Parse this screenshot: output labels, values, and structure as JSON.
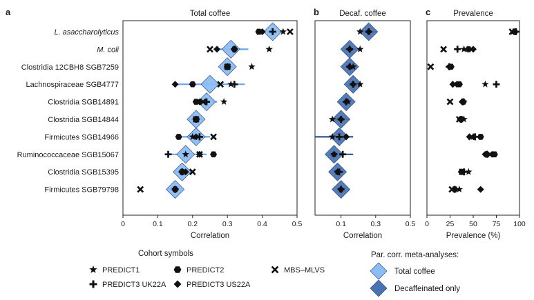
{
  "chart_data": {
    "type": "forest",
    "panels": [
      {
        "label": "a",
        "title": "Total coffee",
        "xlabel": "Correlation",
        "xlim": [
          0,
          0.5
        ],
        "xticks": [
          0,
          0.1,
          0.2,
          0.3,
          0.4,
          0.5
        ],
        "xticklabels": [
          "0",
          "0.1",
          "0.2",
          "0.3",
          "0.4",
          "0.5"
        ],
        "meta_color": "#8bbcf3",
        "rows": [
          {
            "meta": 0.43,
            "ci": [
              0.4,
              0.46
            ],
            "cohorts": {
              "PREDICT1": 0.46,
              "PREDICT2": 0.39,
              "PREDICT3 UK22A": 0.43,
              "PREDICT3 US22A": 0.4,
              "MBS-MLVS": 0.48
            }
          },
          {
            "meta": 0.31,
            "ci": [
              0.26,
              0.36
            ],
            "cohorts": {
              "PREDICT1": 0.42,
              "PREDICT2": 0.32,
              "PREDICT3 UK22A": 0.32,
              "PREDICT3 US22A": 0.27,
              "MBS-MLVS": 0.25
            }
          },
          {
            "meta": 0.3,
            "ci": [
              0.28,
              0.32
            ],
            "cohorts": {
              "PREDICT1": 0.37,
              "PREDICT2": 0.3,
              "PREDICT3 UK22A": 0.3,
              "PREDICT3 US22A": 0.3,
              "MBS-MLVS": 0.3
            }
          },
          {
            "meta": 0.25,
            "ci": [
              0.15,
              0.35
            ],
            "cohorts": {
              "PREDICT1": 0.31,
              "PREDICT2": 0.2,
              "PREDICT3 UK22A": 0.32,
              "PREDICT3 US22A": 0.15,
              "MBS-MLVS": 0.28
            }
          },
          {
            "meta": 0.24,
            "ci": [
              0.21,
              0.27
            ],
            "cohorts": {
              "PREDICT1": 0.29,
              "PREDICT2": 0.21,
              "PREDICT3 UK22A": 0.24,
              "PREDICT3 US22A": 0.22,
              "MBS-MLVS": 0.23
            }
          },
          {
            "meta": 0.21,
            "ci": [
              0.19,
              0.23
            ],
            "cohorts": {
              "PREDICT1": 0.21,
              "PREDICT2": 0.21,
              "PREDICT3 UK22A": 0.21,
              "PREDICT3 US22A": 0.21,
              "MBS-MLVS": 0.21
            }
          },
          {
            "meta": 0.21,
            "ci": [
              0.17,
              0.25
            ],
            "cohorts": {
              "PREDICT1": 0.2,
              "PREDICT2": 0.16,
              "PREDICT3 UK22A": 0.22,
              "PREDICT3 US22A": 0.21,
              "MBS-MLVS": 0.26
            }
          },
          {
            "meta": 0.18,
            "ci": [
              0.13,
              0.24
            ],
            "cohorts": {
              "PREDICT1": 0.18,
              "PREDICT2": 0.26,
              "PREDICT3 UK22A": 0.13,
              "PREDICT3 US22A": 0.22,
              "MBS-MLVS": 0.22
            }
          },
          {
            "meta": 0.17,
            "ci": [
              0.15,
              0.19
            ],
            "cohorts": {
              "PREDICT1": 0.17,
              "PREDICT2": 0.17,
              "PREDICT3 UK22A": 0.17,
              "PREDICT3 US22A": 0.18,
              "MBS-MLVS": 0.2
            }
          },
          {
            "meta": 0.15,
            "ci": [
              0.13,
              0.17
            ],
            "cohorts": {
              "PREDICT1": 0.15,
              "PREDICT2": 0.15,
              "PREDICT3 UK22A": 0.15,
              "PREDICT3 US22A": 0.15,
              "MBS-MLVS": 0.05
            }
          }
        ]
      },
      {
        "label": "b",
        "title": "Decaf. coffee",
        "xlabel": "Correlation",
        "xlim": [
          -0.05,
          0.5
        ],
        "xticks": [
          0.1,
          0.3,
          0.5
        ],
        "xticklabels": [
          "0.1",
          "0.3",
          "0.5"
        ],
        "meta_color": "#4a72b0",
        "rows": [
          {
            "meta": 0.26,
            "ci": [
              0.22,
              0.3
            ],
            "cohorts": {
              "PREDICT1": 0.21,
              "PREDICT3 UK22A": 0.26,
              "PREDICT3 US22A": 0.26
            }
          },
          {
            "meta": 0.15,
            "ci": [
              0.12,
              0.18
            ],
            "cohorts": {
              "PREDICT1": 0.21,
              "PREDICT3 UK22A": 0.15,
              "PREDICT3 US22A": 0.15
            }
          },
          {
            "meta": 0.15,
            "ci": [
              0.13,
              0.17
            ],
            "cohorts": {
              "PREDICT1": 0.17,
              "PREDICT3 UK22A": 0.15,
              "PREDICT3 US22A": 0.15
            }
          },
          {
            "meta": 0.17,
            "ci": [
              0.15,
              0.19
            ],
            "cohorts": {
              "PREDICT1": 0.21,
              "PREDICT3 UK22A": 0.17,
              "PREDICT3 US22A": 0.17
            }
          },
          {
            "meta": 0.13,
            "ci": [
              0.11,
              0.15
            ],
            "cohorts": {
              "PREDICT1": 0.14,
              "PREDICT3 UK22A": 0.13,
              "PREDICT3 US22A": 0.13
            }
          },
          {
            "meta": 0.1,
            "ci": [
              0.05,
              0.15
            ],
            "cohorts": {
              "PREDICT1": 0.05,
              "PREDICT3 UK22A": 0.1,
              "PREDICT3 US22A": 0.1
            }
          },
          {
            "meta": 0.09,
            "ci": [
              -0.05,
              0.17
            ],
            "cohorts": {
              "PREDICT1": 0.05,
              "PREDICT3 UK22A": 0.09,
              "PREDICT3 US22A": 0.13
            }
          },
          {
            "meta": 0.06,
            "ci": [
              0.03,
              0.17
            ],
            "cohorts": {
              "PREDICT1": 0.06,
              "PREDICT3 UK22A": 0.11,
              "PREDICT3 US22A": 0.06
            }
          },
          {
            "meta": 0.08,
            "ci": [
              0.06,
              0.11
            ],
            "cohorts": {
              "PREDICT1": 0.08,
              "PREDICT3 UK22A": 0.09,
              "PREDICT3 US22A": 0.08
            }
          },
          {
            "meta": 0.1,
            "ci": [
              0.08,
              0.12
            ],
            "cohorts": {
              "PREDICT1": 0.1,
              "PREDICT3 UK22A": 0.1,
              "PREDICT3 US22A": 0.1
            }
          }
        ]
      },
      {
        "label": "c",
        "title": "Prevalence",
        "xlabel": "Prevalence (%)",
        "xlim": [
          0,
          100
        ],
        "xticks": [
          0,
          25,
          50,
          75,
          100
        ],
        "xticklabels": [
          "0",
          "25",
          "50",
          "75",
          "100"
        ],
        "rows": [
          {
            "cohorts": {
              "PREDICT1": 93,
              "PREDICT2": 95,
              "PREDICT3 UK22A": 96,
              "PREDICT3 US22A": 94,
              "MBS-MLVS": 92
            }
          },
          {
            "cohorts": {
              "PREDICT1": 40,
              "PREDICT2": 45,
              "PREDICT3 UK22A": 33,
              "PREDICT3 US22A": 50,
              "MBS-MLVS": 18
            }
          },
          {
            "cohorts": {
              "PREDICT1": 25,
              "PREDICT2": 26,
              "PREDICT3 UK22A": 24,
              "PREDICT3 US22A": 24,
              "MBS-MLVS": 4
            }
          },
          {
            "cohorts": {
              "PREDICT1": 63,
              "PREDICT2": 35,
              "PREDICT3 UK22A": 75,
              "PREDICT3 US22A": 28,
              "MBS-MLVS": 30
            }
          },
          {
            "cohorts": {
              "PREDICT1": 40,
              "PREDICT2": 39,
              "PREDICT3 UK22A": 39,
              "PREDICT3 US22A": 38,
              "MBS-MLVS": 25
            }
          },
          {
            "cohorts": {
              "PREDICT1": 40,
              "PREDICT2": 37,
              "PREDICT3 UK22A": 37,
              "PREDICT3 US22A": 36,
              "MBS-MLVS": 35
            }
          },
          {
            "cohorts": {
              "PREDICT1": 50,
              "PREDICT2": 58,
              "PREDICT3 UK22A": 52,
              "PREDICT3 US22A": 46,
              "MBS-MLVS": 48
            }
          },
          {
            "cohorts": {
              "PREDICT1": 65,
              "PREDICT2": 73,
              "PREDICT3 UK22A": 65,
              "PREDICT3 US22A": 63,
              "MBS-MLVS": 68
            }
          },
          {
            "cohorts": {
              "PREDICT1": 45,
              "PREDICT2": 38,
              "PREDICT3 UK22A": 40,
              "PREDICT3 US22A": 37,
              "MBS-MLVS": 38
            }
          },
          {
            "cohorts": {
              "PREDICT1": 35,
              "PREDICT2": 30,
              "PREDICT3 UK22A": 30,
              "PREDICT3 US22A": 58,
              "MBS-MLVS": 27
            }
          }
        ]
      }
    ],
    "row_labels": [
      "L. asaccharolyticus",
      "M. coli",
      "Clostridia 12CBH8 SGB7259",
      "Lachnospiraceae SGB4777",
      "Clostridia SGB14891",
      "Clostridia SGB14844",
      "Firmicutes SGB14966",
      "Ruminococcaceae SGB15067",
      "Clostridia SGB15395",
      "Firmicutes SGB79798"
    ],
    "italic_rows": [
      0,
      1
    ],
    "legend": {
      "cohort_title": "Cohort symbols",
      "cohorts": [
        {
          "name": "PREDICT1",
          "symbol": "star"
        },
        {
          "name": "PREDICT3 UK22A",
          "symbol": "plus"
        },
        {
          "name": "PREDICT2",
          "symbol": "hexagon"
        },
        {
          "name": "PREDICT3 US22A",
          "symbol": "diamond"
        },
        {
          "name": "MBS–MLVS",
          "symbol": "cross"
        }
      ],
      "meta_title": "Par. corr. meta-analyses:",
      "meta": [
        {
          "name": "Total coffee",
          "color": "#8bbcf3"
        },
        {
          "name": "Decaffeinated only",
          "color": "#4a72b0"
        }
      ]
    },
    "colors": {
      "total": "#8bbcf3",
      "decaf": "#4a72b0",
      "total_ci": "#6aa3ef",
      "decaf_ci": "#2f5597",
      "marker": "#111111"
    }
  }
}
